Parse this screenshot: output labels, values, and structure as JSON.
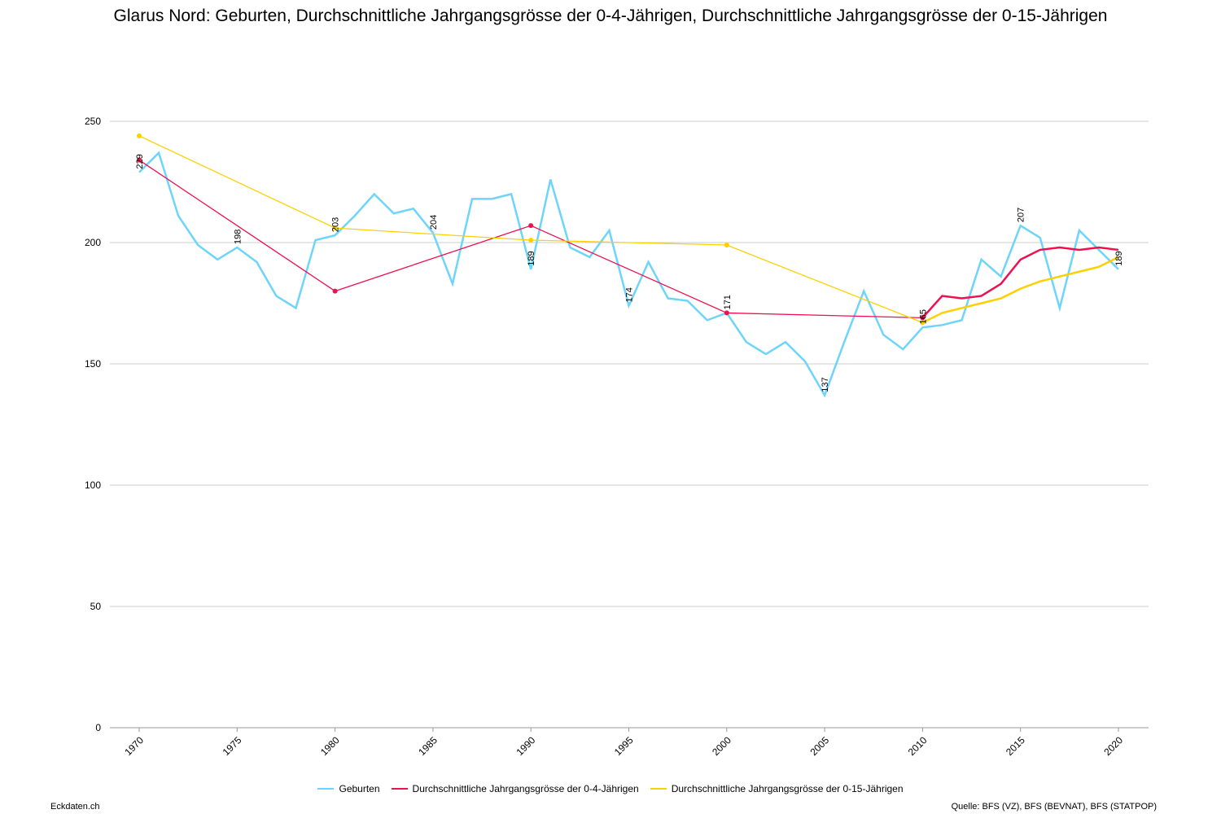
{
  "chart_data": {
    "type": "line",
    "title": "Glarus Nord: Geburten, Durchschnittliche Jahrgangsgrösse der 0-4-Jährigen, Durchschnittliche Jahrgangsgrösse der 0-15-Jährigen",
    "xlabel": "",
    "ylabel": "",
    "xlim": [
      1970,
      2020
    ],
    "ylim": [
      0,
      250
    ],
    "yticks": [
      0,
      50,
      100,
      150,
      200,
      250
    ],
    "xticks": [
      1970,
      1975,
      1980,
      1985,
      1990,
      1995,
      2000,
      2005,
      2010,
      2015,
      2020
    ],
    "grid": true,
    "legend_position": "bottom",
    "series": [
      {
        "name": "Geburten",
        "color": "#6dd5fa",
        "x": [
          1970,
          1971,
          1972,
          1973,
          1974,
          1975,
          1976,
          1977,
          1978,
          1979,
          1980,
          1981,
          1982,
          1983,
          1984,
          1985,
          1986,
          1987,
          1988,
          1989,
          1990,
          1991,
          1992,
          1993,
          1994,
          1995,
          1996,
          1997,
          1998,
          1999,
          2000,
          2001,
          2002,
          2003,
          2004,
          2005,
          2006,
          2007,
          2008,
          2009,
          2010,
          2011,
          2012,
          2013,
          2014,
          2015,
          2016,
          2017,
          2018,
          2019,
          2020
        ],
        "values": [
          229,
          237,
          211,
          199,
          193,
          198,
          192,
          178,
          173,
          201,
          203,
          211,
          220,
          212,
          214,
          204,
          183,
          218,
          218,
          220,
          189,
          226,
          198,
          194,
          205,
          174,
          192,
          177,
          176,
          168,
          171,
          159,
          154,
          159,
          151,
          137,
          159,
          180,
          162,
          156,
          165,
          166,
          168,
          193,
          186,
          207,
          202,
          173,
          205,
          197,
          189
        ],
        "data_labels": {
          "1970": "229",
          "1975": "198",
          "1980": "203",
          "1985": "204",
          "1990": "189",
          "1995": "174",
          "2000": "171",
          "2005": "137",
          "2010": "165",
          "2015": "207",
          "2020": "189"
        }
      },
      {
        "name": "Durchschnittliche Jahrgangsgrösse der 0-4-Jährigen",
        "color": "#f0104f",
        "x": [
          1970,
          1980,
          1990,
          2000,
          2010,
          2011,
          2012,
          2013,
          2014,
          2015,
          2016,
          2017,
          2018,
          2019,
          2020
        ],
        "values": [
          234,
          180,
          207,
          171,
          169,
          178,
          177,
          178,
          183,
          193,
          197,
          198,
          197,
          198,
          197
        ]
      },
      {
        "name": "Durchschnittliche Jahrgangsgrösse der 0-15-Jährigen",
        "color": "#ffd000",
        "x": [
          1970,
          1980,
          1990,
          2000,
          2010,
          2011,
          2012,
          2013,
          2014,
          2015,
          2016,
          2017,
          2018,
          2019,
          2020
        ],
        "values": [
          244,
          206,
          201,
          199,
          167,
          171,
          173,
          175,
          177,
          181,
          184,
          186,
          188,
          190,
          194
        ]
      }
    ]
  },
  "footer": {
    "left": "Eckdaten.ch",
    "right": "Quelle: BFS (VZ), BFS (BEVNAT), BFS (STATPOP)"
  }
}
